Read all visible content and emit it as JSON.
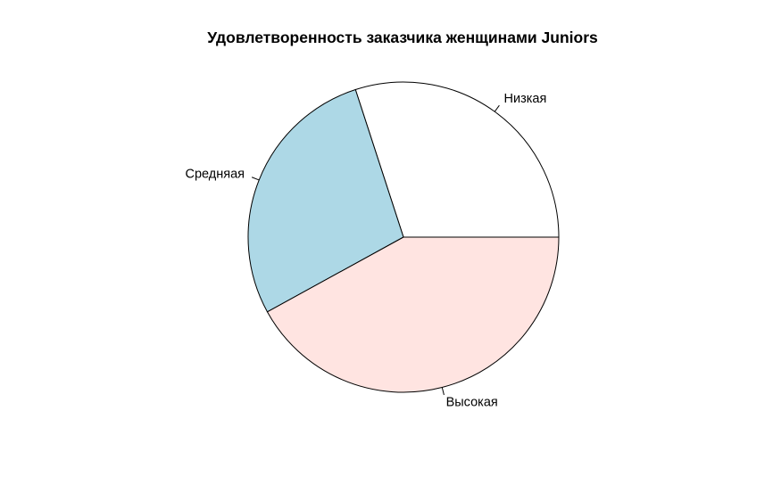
{
  "chart_data": {
    "type": "pie",
    "title": "Удовлетворенность заказчика женщинами Juniors",
    "start_angle_deg": 0,
    "direction": "counterclockwise",
    "slices": [
      {
        "label": "Низкая",
        "value": 0.3,
        "color": "#ffffff"
      },
      {
        "label": "Средняая",
        "value": 0.28,
        "color": "#add8e6"
      },
      {
        "label": "Высокая",
        "value": 0.42,
        "color": "#ffe4e1"
      }
    ],
    "border_color": "#000000"
  }
}
